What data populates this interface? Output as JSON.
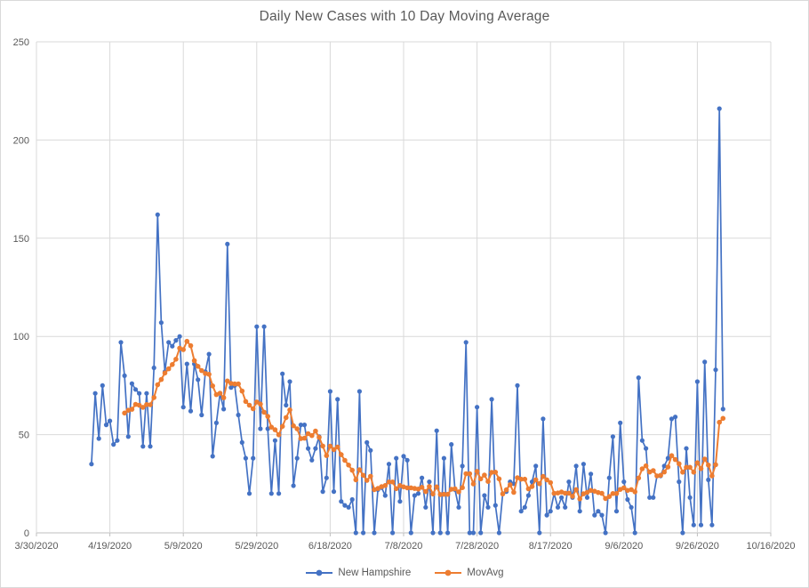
{
  "chart_data": {
    "type": "line",
    "title": "Daily New Cases with 10 Day Moving Average",
    "grid": true,
    "background": "#ffffff",
    "colors": {
      "gridline": "#d9d9d9",
      "axis_line": "#bfbfbf",
      "axis_text": "#595959",
      "title_text": "#595959",
      "chart_border": "#d9d9d9"
    },
    "x_axis": {
      "start": "3/30/2020",
      "end": "10/16/2020",
      "tick_interval_days": 20,
      "tick_labels": [
        "3/30/2020",
        "4/19/2020",
        "5/9/2020",
        "5/29/2020",
        "6/18/2020",
        "7/8/2020",
        "7/28/2020",
        "8/17/2020",
        "9/6/2020",
        "9/26/2020",
        "10/16/2020"
      ]
    },
    "y_axis": {
      "min": 0,
      "max": 250,
      "step": 50,
      "tick_labels": [
        "0",
        "50",
        "100",
        "150",
        "200",
        "250"
      ]
    },
    "legend": {
      "position": "bottom",
      "entries": [
        "New Hampshire",
        "MovAvg"
      ]
    },
    "series": [
      {
        "name": "New Hampshire",
        "color": "#4472C4",
        "marker": "circle",
        "start_date": "4/14/2020",
        "frequency": "daily",
        "values": [
          35,
          71,
          48,
          75,
          55,
          57,
          45,
          47,
          97,
          80,
          49,
          76,
          73,
          71,
          44,
          71,
          44,
          84,
          162,
          107,
          82,
          97,
          95,
          98,
          100,
          64,
          86,
          62,
          86,
          78,
          60,
          82,
          91,
          39,
          56,
          71,
          63,
          147,
          74,
          75,
          60,
          46,
          38,
          20,
          38,
          105,
          53,
          105,
          53,
          20,
          47,
          20,
          81,
          65,
          77,
          24,
          38,
          55,
          55,
          43,
          37,
          43,
          49,
          21,
          28,
          72,
          21,
          68,
          16,
          14,
          13,
          17,
          0,
          72,
          0,
          46,
          42,
          0,
          22,
          23,
          19,
          35,
          0,
          38,
          16,
          39,
          37,
          0,
          19,
          20,
          28,
          13,
          26,
          0,
          52,
          0,
          38,
          0,
          45,
          22,
          13,
          34,
          97,
          0,
          0,
          64,
          0,
          19,
          13,
          68,
          14,
          0,
          20,
          21,
          26,
          25,
          75,
          11,
          13,
          19,
          26,
          34,
          0,
          58,
          9,
          11,
          20,
          13,
          18,
          13,
          26,
          18,
          34,
          11,
          35,
          18,
          30,
          9,
          11,
          9,
          0,
          28,
          49,
          11,
          56,
          26,
          17,
          13,
          0,
          79,
          47,
          43,
          18,
          18,
          29,
          29,
          34,
          38,
          58,
          59,
          26,
          0,
          43,
          18,
          4,
          77,
          4,
          87,
          27,
          4,
          83,
          216,
          63
        ]
      },
      {
        "name": "MovAvg",
        "color": "#ED7D31",
        "marker": "circle",
        "derivation": "trailing 10-day moving average of New Hampshire daily values",
        "window_days": 10
      }
    ]
  }
}
